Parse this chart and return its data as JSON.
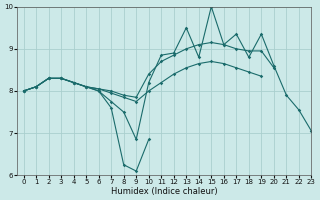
{
  "xlabel": "Humidex (Indice chaleur)",
  "x_values": [
    0,
    1,
    2,
    3,
    4,
    5,
    6,
    7,
    8,
    9,
    10,
    11,
    12,
    13,
    14,
    15,
    16,
    17,
    18,
    19,
    20,
    21,
    22,
    23
  ],
  "line_zigzag": [
    8.0,
    8.1,
    8.3,
    8.3,
    8.2,
    8.1,
    8.0,
    7.75,
    7.5,
    6.85,
    8.2,
    8.85,
    8.9,
    9.5,
    8.8,
    10.0,
    9.1,
    9.35,
    8.8,
    9.35,
    8.6,
    7.9,
    7.55,
    7.05
  ],
  "line_upper": [
    8.0,
    8.1,
    8.3,
    8.3,
    8.2,
    8.1,
    8.05,
    8.0,
    7.9,
    7.85,
    8.4,
    8.7,
    8.85,
    9.0,
    9.1,
    9.15,
    9.1,
    9.0,
    8.95,
    8.95,
    8.55,
    null,
    null,
    null
  ],
  "line_middle": [
    8.0,
    8.1,
    8.3,
    8.3,
    8.2,
    8.1,
    8.05,
    7.95,
    7.85,
    7.75,
    8.0,
    8.2,
    8.4,
    8.55,
    8.65,
    8.7,
    8.65,
    8.55,
    8.45,
    8.35,
    null,
    null,
    null,
    null
  ],
  "line_low": [
    8.0,
    8.1,
    8.3,
    8.3,
    8.2,
    8.1,
    8.0,
    7.6,
    6.25,
    6.1,
    6.85,
    null,
    null,
    null,
    null,
    null,
    null,
    null,
    null,
    null,
    null,
    null,
    null,
    null
  ],
  "bg_color": "#cce9e8",
  "grid_color": "#aacfce",
  "line_color": "#1a6b6b",
  "ylim": [
    6,
    10
  ],
  "xlim": [
    -0.5,
    23
  ]
}
